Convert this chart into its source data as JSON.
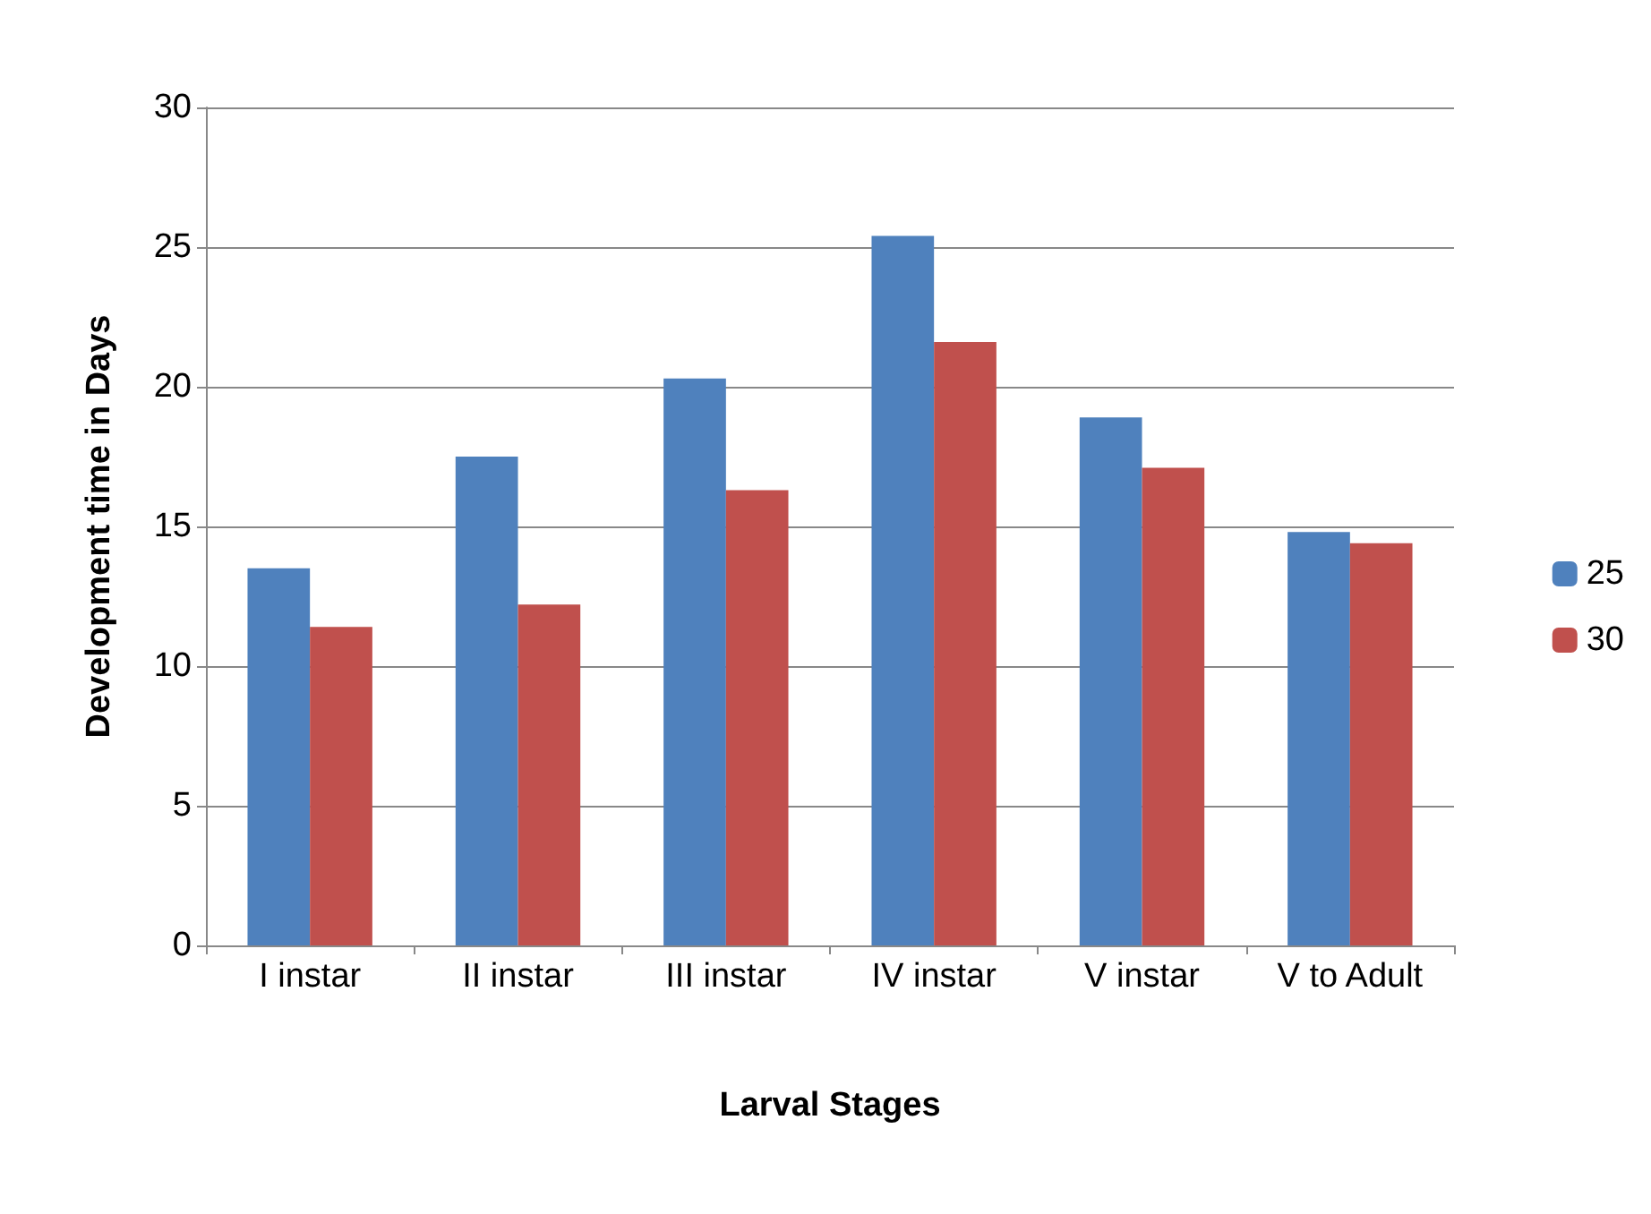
{
  "chart_data": {
    "type": "bar",
    "xlabel": "Larval Stages",
    "ylabel": "Development time in Days",
    "categories": [
      "I instar",
      "II instar",
      "III instar",
      "IV instar",
      "V instar",
      "V to Adult"
    ],
    "series": [
      {
        "name": "25",
        "color": "#4f81bd",
        "values": [
          13.5,
          17.5,
          20.3,
          25.4,
          18.9,
          14.8
        ]
      },
      {
        "name": "30",
        "color": "#c0504d",
        "values": [
          11.4,
          12.2,
          16.3,
          21.6,
          17.1,
          14.4
        ]
      }
    ],
    "ylim": [
      0,
      30
    ],
    "yticks": [
      0,
      5,
      10,
      15,
      20,
      25,
      30
    ],
    "grid": "y",
    "legend": "right"
  }
}
